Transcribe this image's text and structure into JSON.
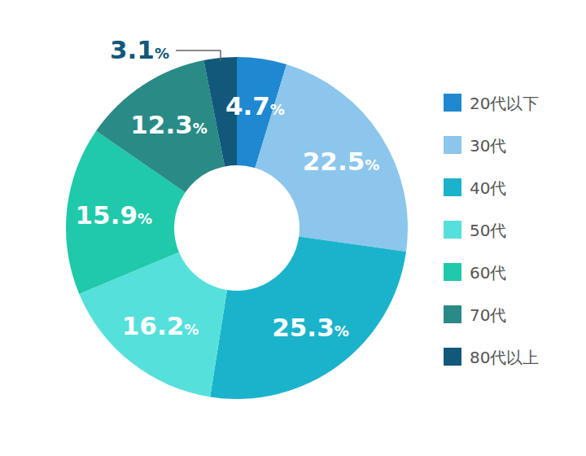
{
  "chart_data": {
    "type": "donut",
    "categories": [
      "20代以下",
      "30代",
      "40代",
      "50代",
      "60代",
      "70代",
      "80代以上"
    ],
    "values": [
      4.7,
      22.5,
      25.3,
      16.2,
      15.9,
      12.3,
      3.1
    ],
    "value_labels": [
      "4.7%",
      "22.5%",
      "25.3%",
      "16.2%",
      "15.9%",
      "12.3%",
      "3.1%"
    ],
    "colors": [
      "#1e88d0",
      "#8cc6ec",
      "#1bb3cc",
      "#56e0dc",
      "#1fc9aa",
      "#2a8a86",
      "#11587a"
    ],
    "data_labels": true,
    "legend": "right"
  }
}
